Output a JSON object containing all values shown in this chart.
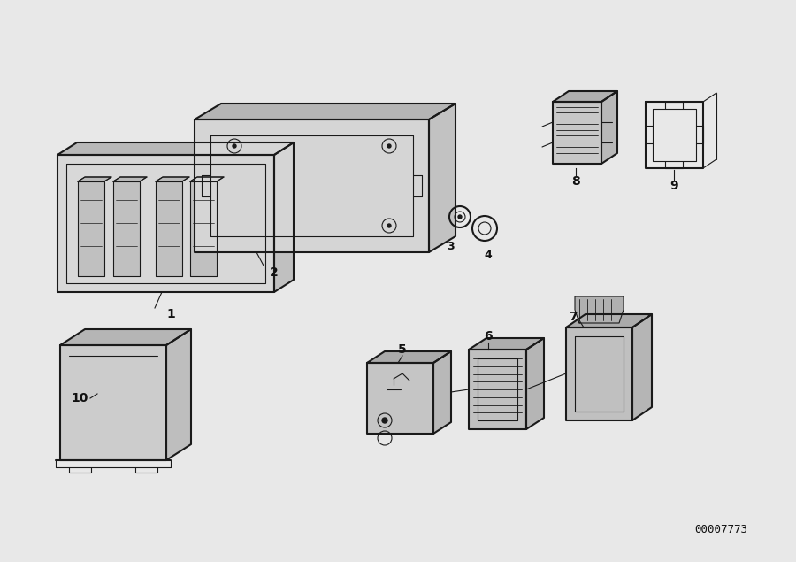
{
  "background_color": "#e8e8e8",
  "line_color": "#1a1a1a",
  "label_color": "#111111",
  "diagram_id": "00007773",
  "figsize": [
    9.0,
    6.35
  ],
  "dpi": 100
}
